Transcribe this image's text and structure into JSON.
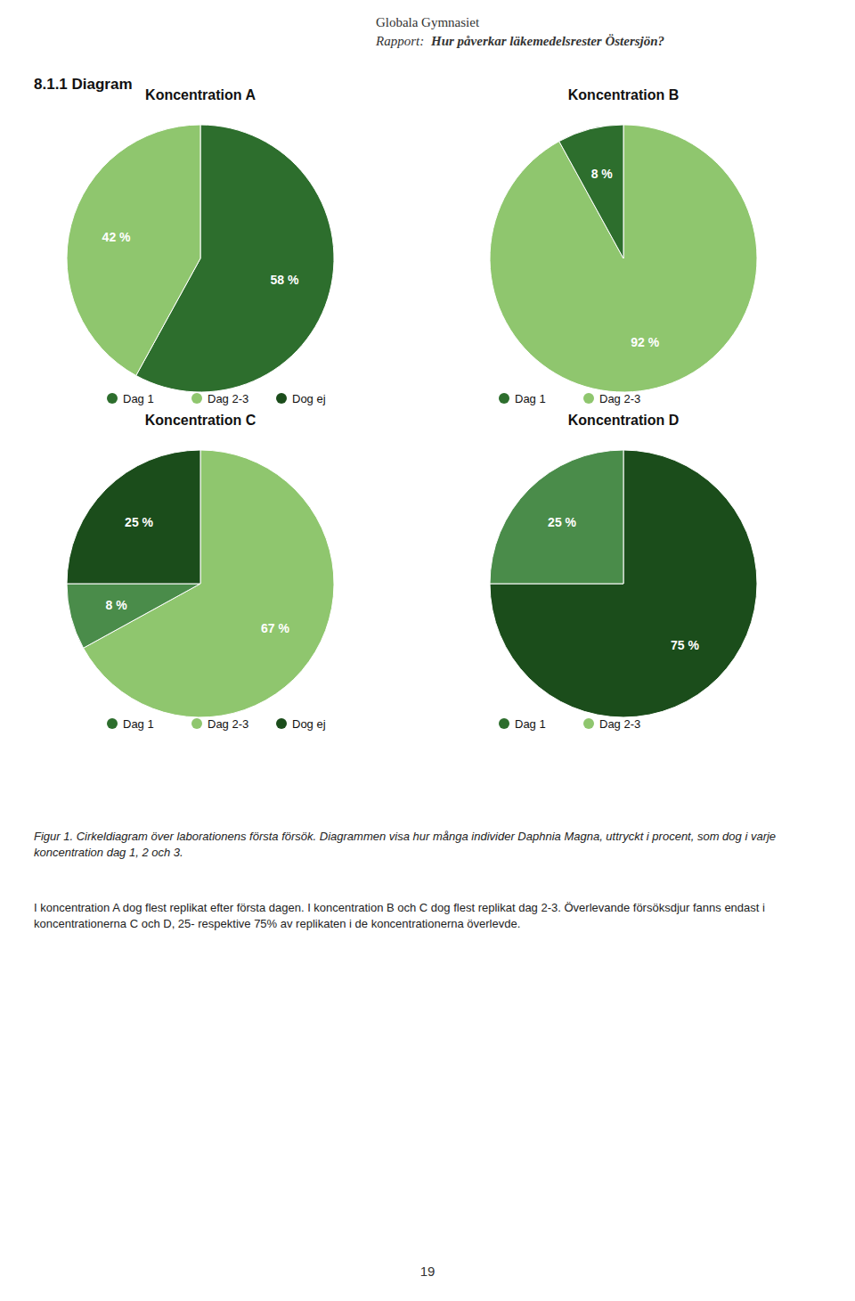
{
  "header_title": "Globala Gymnasiet",
  "header_subtitle_plain": "Rapport: ",
  "header_subtitle_bold": "Hur påverkar läkemedelsrester Östersjön?",
  "section_title": "8.1.1 Diagram",
  "figure_caption": "Figur 1. Cirkeldiagram över laborationens första försök. Diagrammen visa hur många individer Daphnia Magna, uttryckt i procent, som dog i varje koncentration dag 1, 2 och 3.",
  "paragraph": "I koncentration A dog flest replikat efter första dagen. I koncentration B och C dog flest replikat dag 2-3. Överlevande försöksdjur fanns endast i koncentrationerna C och D, 25- respektive 75% av replikaten i de koncentrationerna överlevde.",
  "page_number": "19",
  "chart_data": [
    {
      "type": "pie",
      "title": "Koncentration A",
      "values": [
        58,
        42
      ],
      "value_labels": [
        "58 %",
        "42 %"
      ],
      "colors": [
        "#2d6e2d",
        "#8fc66e"
      ],
      "data_labels": true,
      "legend_entries": [
        {
          "name": "Dag 1",
          "color": "#2d6e2d"
        },
        {
          "name": "Dag 2-3",
          "color": "#8fc66e"
        },
        {
          "name": "Dog ej",
          "color": "#1b4d1b"
        }
      ]
    },
    {
      "type": "pie",
      "title": "Koncentration B",
      "values": [
        92,
        8
      ],
      "value_labels": [
        "92 %",
        "8 %"
      ],
      "colors": [
        "#8fc66e",
        "#2d6e2d"
      ],
      "data_labels": true,
      "legend_entries": [
        {
          "name": "Dag 1",
          "color": "#2d6e2d"
        },
        {
          "name": "Dag 2-3",
          "color": "#8fc66e"
        }
      ]
    },
    {
      "type": "pie",
      "title": "Koncentration C",
      "values": [
        67,
        8,
        25
      ],
      "value_labels": [
        "67 %",
        "8 %",
        "25 %"
      ],
      "colors": [
        "#8fc66e",
        "#4a8c4a",
        "#1b4d1b"
      ],
      "data_labels": true,
      "legend_entries": [
        {
          "name": "Dag 1",
          "color": "#2d6e2d"
        },
        {
          "name": "Dag 2-3",
          "color": "#8fc66e"
        },
        {
          "name": "Dog ej",
          "color": "#1b4d1b"
        }
      ]
    },
    {
      "type": "pie",
      "title": "Koncentration D",
      "values": [
        75,
        25
      ],
      "value_labels": [
        "75 %",
        "25 %"
      ],
      "colors": [
        "#1b4d1b",
        "#4a8c4a"
      ],
      "data_labels": true,
      "legend_entries": [
        {
          "name": "Dag 1",
          "color": "#2d6e2d"
        },
        {
          "name": "Dag 2-3",
          "color": "#8fc66e"
        }
      ]
    }
  ]
}
